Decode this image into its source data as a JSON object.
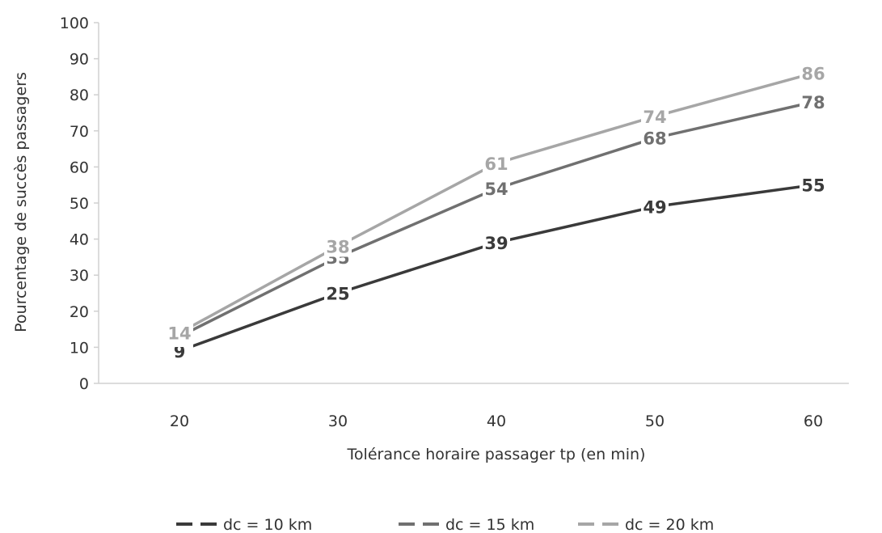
{
  "chart_data": {
    "type": "line",
    "xlabel": "Tolérance horaire passager tp (en min)",
    "ylabel": "Pourcentage de succès passagers",
    "x": [
      20,
      30,
      40,
      50,
      60
    ],
    "xticks": [
      "20",
      "30",
      "40",
      "50",
      "60"
    ],
    "ylim": [
      0,
      100
    ],
    "yticks": [
      0,
      10,
      20,
      30,
      40,
      50,
      60,
      70,
      80,
      90,
      100
    ],
    "grid": false,
    "legend_position": "bottom",
    "series": [
      {
        "name": "dc = 10 km",
        "values": [
          9,
          25,
          39,
          49,
          55
        ],
        "color": "#3a3a3a",
        "dash": "solid"
      },
      {
        "name": "dc = 15 km",
        "values": [
          13,
          35,
          54,
          68,
          78
        ],
        "color": "#707070",
        "dash": "solid"
      },
      {
        "name": "dc = 20 km",
        "values": [
          14,
          38,
          61,
          74,
          86
        ],
        "color": "#a6a6a6",
        "dash": "solid"
      }
    ]
  }
}
